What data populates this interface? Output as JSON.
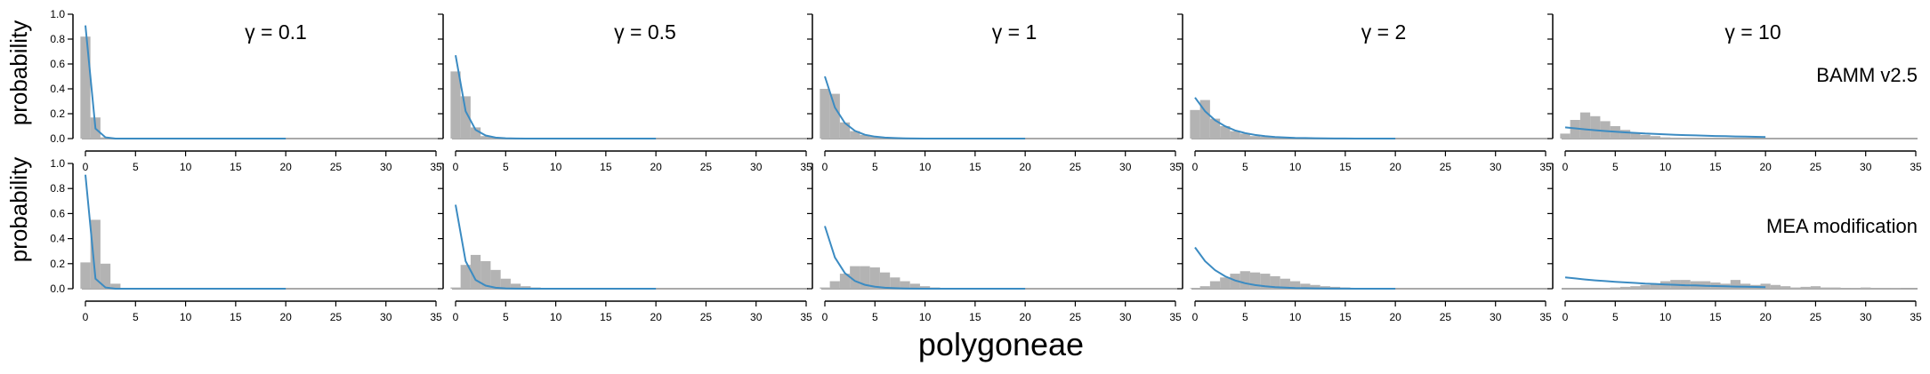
{
  "figure": {
    "xlabel": "polygoneae",
    "ylabel": "probability",
    "row_labels": [
      "BAMM v2.5",
      "MEA modification"
    ],
    "gamma_titles": [
      "γ = 0.1",
      "γ = 0.5",
      "γ = 1",
      "γ = 2",
      "γ = 10"
    ],
    "xticks": [
      0,
      5,
      10,
      15,
      20,
      25,
      30,
      35
    ],
    "yticks": [
      "0.0",
      "0.2",
      "0.4",
      "0.6",
      "0.8",
      "1.0"
    ],
    "colors": {
      "bar": "#b3b3b3",
      "line": "#3b8bc2",
      "axis": "#000000"
    }
  },
  "chart_data": [
    {
      "type": "bar",
      "panel": "BAMM v2.5 / γ = 0.1",
      "xlim": [
        0,
        35
      ],
      "ylim": [
        0,
        1
      ],
      "x": [
        0,
        1,
        2,
        3
      ],
      "values": [
        0.82,
        0.17,
        0.01,
        0.0
      ],
      "line": {
        "x": [
          0,
          1,
          2,
          3,
          4,
          5,
          6,
          7,
          8,
          9,
          10,
          11,
          12,
          13,
          14,
          15,
          16,
          17,
          18,
          19,
          20
        ],
        "y": [
          0.91,
          0.08,
          0.01,
          0,
          0,
          0,
          0,
          0,
          0,
          0,
          0,
          0,
          0,
          0,
          0,
          0,
          0,
          0,
          0,
          0,
          0
        ]
      }
    },
    {
      "type": "bar",
      "panel": "BAMM v2.5 / γ = 0.5",
      "xlim": [
        0,
        35
      ],
      "ylim": [
        0,
        1
      ],
      "x": [
        0,
        1,
        2,
        3,
        4,
        5
      ],
      "values": [
        0.54,
        0.34,
        0.09,
        0.02,
        0.01,
        0.0
      ],
      "line": {
        "x": [
          0,
          1,
          2,
          3,
          4,
          5,
          6,
          7,
          8,
          9,
          10,
          11,
          12,
          13,
          14,
          15,
          16,
          17,
          18,
          19,
          20
        ],
        "y": [
          0.67,
          0.22,
          0.07,
          0.025,
          0.008,
          0.003,
          0.001,
          0,
          0,
          0,
          0,
          0,
          0,
          0,
          0,
          0,
          0,
          0,
          0,
          0,
          0
        ]
      }
    },
    {
      "type": "bar",
      "panel": "BAMM v2.5 / γ = 1",
      "xlim": [
        0,
        35
      ],
      "ylim": [
        0,
        1
      ],
      "x": [
        0,
        1,
        2,
        3,
        4,
        5,
        6,
        7
      ],
      "values": [
        0.4,
        0.36,
        0.13,
        0.06,
        0.03,
        0.015,
        0.005,
        0.003
      ],
      "line": {
        "x": [
          0,
          1,
          2,
          3,
          4,
          5,
          6,
          7,
          8,
          9,
          10,
          11,
          12,
          13,
          14,
          15,
          16,
          17,
          18,
          19,
          20
        ],
        "y": [
          0.5,
          0.25,
          0.125,
          0.062,
          0.031,
          0.016,
          0.008,
          0.004,
          0.002,
          0.001,
          0,
          0,
          0,
          0,
          0,
          0,
          0,
          0,
          0,
          0,
          0
        ]
      }
    },
    {
      "type": "bar",
      "panel": "BAMM v2.5 / γ = 2",
      "xlim": [
        0,
        35
      ],
      "ylim": [
        0,
        1
      ],
      "x": [
        0,
        1,
        2,
        3,
        4,
        5,
        6,
        7,
        8,
        9,
        10
      ],
      "values": [
        0.23,
        0.31,
        0.16,
        0.1,
        0.06,
        0.04,
        0.02,
        0.015,
        0.01,
        0.006,
        0.004
      ],
      "line": {
        "x": [
          0,
          1,
          2,
          3,
          4,
          5,
          6,
          7,
          8,
          9,
          10,
          11,
          12,
          13,
          14,
          15,
          16,
          17,
          18,
          19,
          20
        ],
        "y": [
          0.33,
          0.22,
          0.148,
          0.099,
          0.066,
          0.044,
          0.029,
          0.019,
          0.013,
          0.009,
          0.006,
          0.004,
          0.003,
          0.002,
          0.001,
          0.001,
          0,
          0,
          0,
          0,
          0
        ]
      }
    },
    {
      "type": "bar",
      "panel": "BAMM v2.5 / γ = 10",
      "xlim": [
        0,
        35
      ],
      "ylim": [
        0,
        1
      ],
      "x": [
        0,
        1,
        2,
        3,
        4,
        5,
        6,
        7,
        8,
        9,
        10,
        11,
        12,
        13,
        14,
        15,
        16
      ],
      "values": [
        0.04,
        0.15,
        0.21,
        0.18,
        0.14,
        0.1,
        0.07,
        0.05,
        0.03,
        0.02,
        0.01,
        0.008,
        0.005,
        0.003,
        0.002,
        0.001,
        0.001
      ],
      "line": {
        "x": [
          0,
          1,
          2,
          3,
          4,
          5,
          6,
          7,
          8,
          9,
          10,
          11,
          12,
          13,
          14,
          15,
          16,
          17,
          18,
          19,
          20
        ],
        "y": [
          0.09,
          0.082,
          0.074,
          0.067,
          0.061,
          0.055,
          0.05,
          0.046,
          0.041,
          0.038,
          0.034,
          0.031,
          0.028,
          0.026,
          0.023,
          0.021,
          0.019,
          0.017,
          0.016,
          0.014,
          0.013
        ]
      }
    },
    {
      "type": "bar",
      "panel": "MEA modification / γ = 0.1",
      "xlim": [
        0,
        35
      ],
      "ylim": [
        0,
        1
      ],
      "x": [
        0,
        1,
        2,
        3
      ],
      "values": [
        0.21,
        0.55,
        0.2,
        0.04
      ],
      "line": {
        "x": [
          0,
          1,
          2,
          3,
          4,
          5,
          6,
          7,
          8,
          9,
          10,
          11,
          12,
          13,
          14,
          15,
          16,
          17,
          18,
          19,
          20
        ],
        "y": [
          0.91,
          0.08,
          0.01,
          0,
          0,
          0,
          0,
          0,
          0,
          0,
          0,
          0,
          0,
          0,
          0,
          0,
          0,
          0,
          0,
          0,
          0
        ]
      }
    },
    {
      "type": "bar",
      "panel": "MEA modification / γ = 0.5",
      "xlim": [
        0,
        35
      ],
      "ylim": [
        0,
        1
      ],
      "x": [
        0,
        1,
        2,
        3,
        4,
        5,
        6,
        7,
        8
      ],
      "values": [
        0.01,
        0.19,
        0.27,
        0.22,
        0.15,
        0.08,
        0.04,
        0.02,
        0.01
      ],
      "line": {
        "x": [
          0,
          1,
          2,
          3,
          4,
          5,
          6,
          7,
          8,
          9,
          10,
          11,
          12,
          13,
          14,
          15,
          16,
          17,
          18,
          19,
          20
        ],
        "y": [
          0.67,
          0.22,
          0.07,
          0.025,
          0.008,
          0.003,
          0.001,
          0,
          0,
          0,
          0,
          0,
          0,
          0,
          0,
          0,
          0,
          0,
          0,
          0,
          0
        ]
      }
    },
    {
      "type": "bar",
      "panel": "MEA modification / γ = 1",
      "xlim": [
        0,
        35
      ],
      "ylim": [
        0,
        1
      ],
      "x": [
        0,
        1,
        2,
        3,
        4,
        5,
        6,
        7,
        8,
        9,
        10,
        11,
        12
      ],
      "values": [
        0.01,
        0.06,
        0.12,
        0.18,
        0.18,
        0.17,
        0.13,
        0.09,
        0.06,
        0.04,
        0.02,
        0.01,
        0.005
      ],
      "line": {
        "x": [
          0,
          1,
          2,
          3,
          4,
          5,
          6,
          7,
          8,
          9,
          10,
          11,
          12,
          13,
          14,
          15,
          16,
          17,
          18,
          19,
          20
        ],
        "y": [
          0.5,
          0.25,
          0.125,
          0.062,
          0.031,
          0.016,
          0.008,
          0.004,
          0.002,
          0.001,
          0,
          0,
          0,
          0,
          0,
          0,
          0,
          0,
          0,
          0,
          0
        ]
      }
    },
    {
      "type": "bar",
      "panel": "MEA modification / γ = 2",
      "xlim": [
        0,
        35
      ],
      "ylim": [
        0,
        1
      ],
      "x": [
        0,
        1,
        2,
        3,
        4,
        5,
        6,
        7,
        8,
        9,
        10,
        11,
        12,
        13,
        14,
        15,
        16,
        17
      ],
      "values": [
        0.005,
        0.02,
        0.06,
        0.09,
        0.12,
        0.14,
        0.13,
        0.12,
        0.1,
        0.08,
        0.06,
        0.04,
        0.03,
        0.02,
        0.015,
        0.01,
        0.006,
        0.004
      ],
      "line": {
        "x": [
          0,
          1,
          2,
          3,
          4,
          5,
          6,
          7,
          8,
          9,
          10,
          11,
          12,
          13,
          14,
          15,
          16,
          17,
          18,
          19,
          20
        ],
        "y": [
          0.33,
          0.22,
          0.148,
          0.099,
          0.066,
          0.044,
          0.029,
          0.019,
          0.013,
          0.009,
          0.006,
          0.004,
          0.003,
          0.002,
          0.001,
          0.001,
          0,
          0,
          0,
          0,
          0
        ]
      }
    },
    {
      "type": "bar",
      "panel": "MEA modification / γ = 10",
      "xlim": [
        0,
        35
      ],
      "ylim": [
        0,
        1
      ],
      "x": [
        4,
        5,
        6,
        7,
        8,
        9,
        10,
        11,
        12,
        13,
        14,
        15,
        16,
        17,
        18,
        19,
        20,
        21,
        22,
        23,
        24,
        25,
        26,
        27,
        28,
        29,
        30,
        31,
        32,
        33
      ],
      "values": [
        0.005,
        0.01,
        0.015,
        0.02,
        0.03,
        0.04,
        0.06,
        0.07,
        0.07,
        0.06,
        0.06,
        0.05,
        0.04,
        0.07,
        0.04,
        0.03,
        0.04,
        0.03,
        0.02,
        0.01,
        0.015,
        0.02,
        0.01,
        0.01,
        0.005,
        0.005,
        0.01,
        0.005,
        0.005,
        0.005
      ],
      "line": {
        "x": [
          0,
          1,
          2,
          3,
          4,
          5,
          6,
          7,
          8,
          9,
          10,
          11,
          12,
          13,
          14,
          15,
          16,
          17,
          18,
          19,
          20
        ],
        "y": [
          0.09,
          0.082,
          0.074,
          0.067,
          0.061,
          0.055,
          0.05,
          0.046,
          0.041,
          0.038,
          0.034,
          0.031,
          0.028,
          0.026,
          0.023,
          0.021,
          0.019,
          0.017,
          0.016,
          0.014,
          0.013
        ]
      }
    }
  ]
}
